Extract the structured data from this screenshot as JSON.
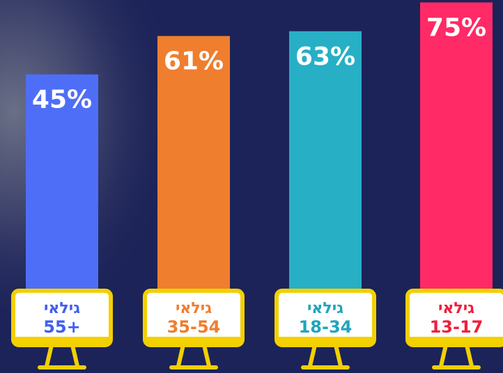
{
  "chart_data": {
    "type": "bar",
    "categories": [
      "55+",
      "35-54",
      "18-34",
      "13-17"
    ],
    "category_prefixes": [
      "גילאי",
      "גילאי",
      "גילאי",
      "גילאי"
    ],
    "values": [
      45,
      61,
      63,
      75
    ],
    "value_labels": [
      "45%",
      "61%",
      "63%",
      "75%"
    ],
    "colors": [
      "#4f6ef7",
      "#ef7e2f",
      "#27afc6",
      "#ff2a66"
    ],
    "label_colors": [
      "#3f5ff0",
      "#ef7e2f",
      "#1fa5bd",
      "#f01e3c"
    ],
    "ylim": [
      -46,
      76
    ]
  }
}
